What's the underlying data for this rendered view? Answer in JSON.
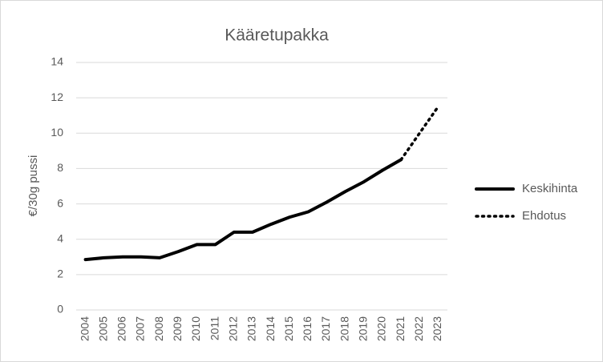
{
  "chart_data": {
    "type": "line",
    "title": "Kääretupakka",
    "y_label": "€/30g pussi",
    "categories": [
      "2004",
      "2005",
      "2006",
      "2007",
      "2008",
      "2009",
      "2010",
      "2011",
      "2012",
      "2013",
      "2014",
      "2015",
      "2016",
      "2017",
      "2018",
      "2019",
      "2020",
      "2021",
      "2022",
      "2023"
    ],
    "series": [
      {
        "name": "Keskihinta",
        "color": "#000000",
        "dash": "solid",
        "values": [
          2.85,
          2.95,
          3.0,
          3.0,
          2.95,
          3.3,
          3.7,
          3.7,
          4.4,
          4.4,
          4.85,
          5.25,
          5.55,
          6.1,
          6.7,
          7.25,
          7.9,
          8.5,
          null,
          null
        ]
      },
      {
        "name": "Ehdotus",
        "color": "#000000",
        "dash": "dotted",
        "values": [
          null,
          null,
          null,
          null,
          null,
          null,
          null,
          null,
          null,
          null,
          null,
          null,
          null,
          null,
          null,
          null,
          null,
          8.5,
          10.0,
          11.5
        ]
      }
    ],
    "ylim": [
      0,
      14
    ],
    "yticks": [
      0,
      2,
      4,
      6,
      8,
      10,
      12,
      14
    ],
    "grid": true,
    "legend": "right"
  }
}
